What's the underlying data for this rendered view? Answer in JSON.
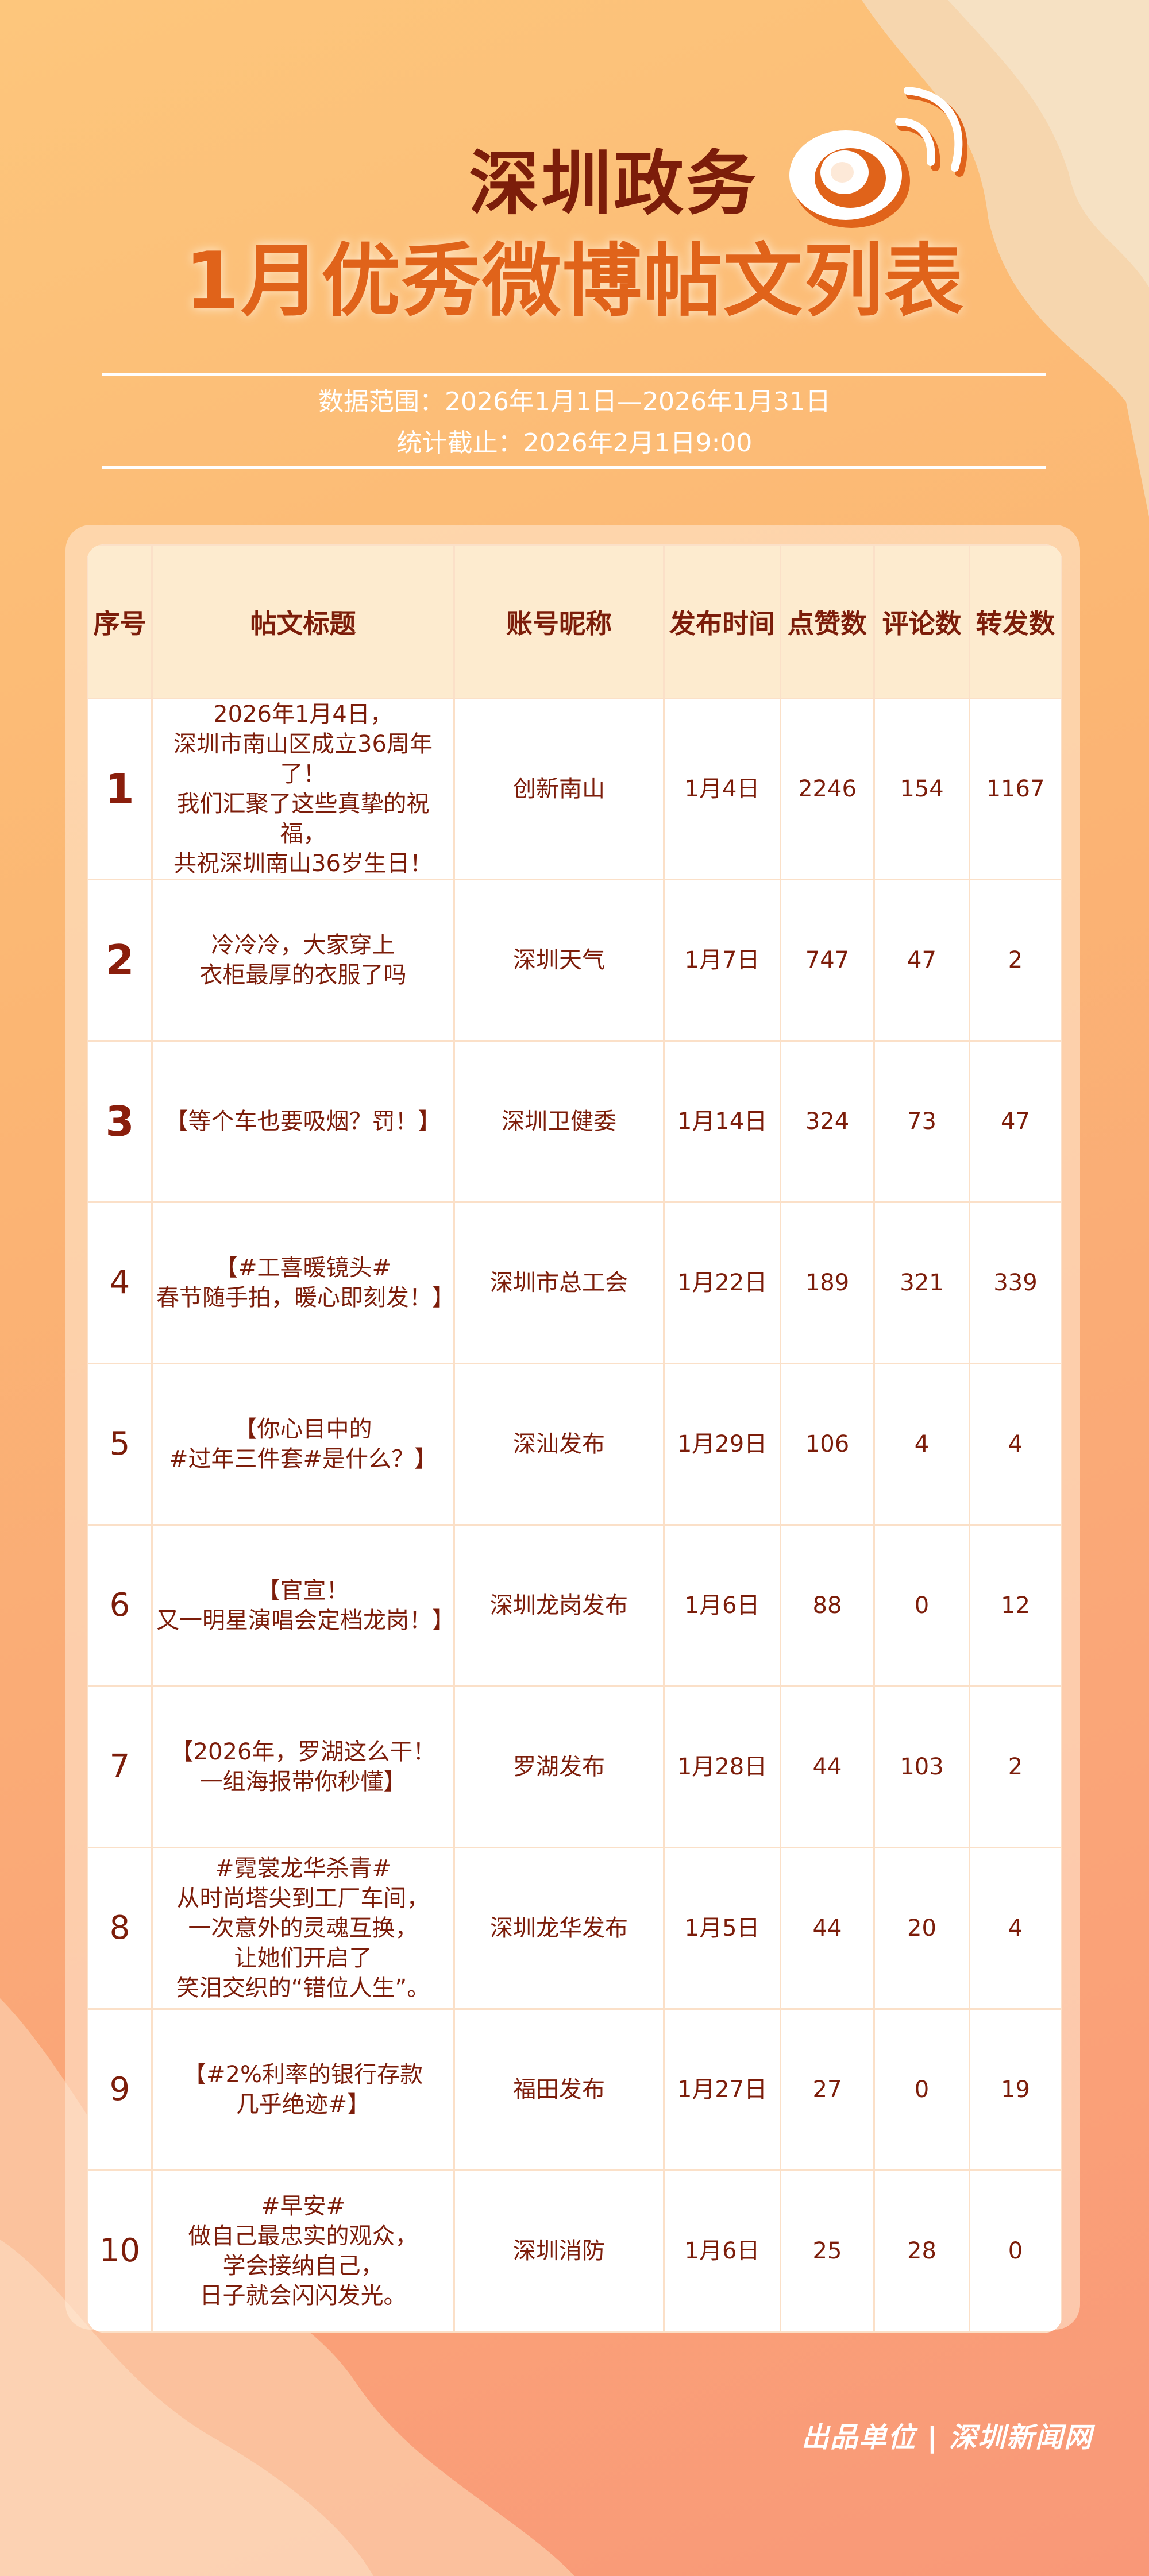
{
  "header": {
    "title_line1": "深圳政务",
    "title_line2": "1月优秀微博帖文列表",
    "logo": "weibo-logo",
    "data_range": "数据范围：2026年1月1日—2026年1月31日",
    "cutoff": "统计截止：2026年2月1日9:00"
  },
  "table": {
    "columns": [
      "序号",
      "帖文标题",
      "账号昵称",
      "发布时间",
      "点赞数",
      "评论数",
      "转发数"
    ],
    "rows": [
      {
        "rank": "1",
        "title": "2026年1月4日，\n深圳市南山区成立36周年了！\n我们汇聚了这些真挚的祝福，\n共祝深圳南山36岁生日！",
        "account": "创新南山",
        "date": "1月4日",
        "likes": "2246",
        "comments": "154",
        "reposts": "1167"
      },
      {
        "rank": "2",
        "title": "冷冷冷，大家穿上\n衣柜最厚的衣服了吗",
        "account": "深圳天气",
        "date": "1月7日",
        "likes": "747",
        "comments": "47",
        "reposts": "2"
      },
      {
        "rank": "3",
        "title": "【等个车也要吸烟？罚！】",
        "account": "深圳卫健委",
        "date": "1月14日",
        "likes": "324",
        "comments": "73",
        "reposts": "47"
      },
      {
        "rank": "4",
        "title": "【#工喜暖镜头#\n春节随手拍，暖心即刻发！】",
        "account": "深圳市总工会",
        "date": "1月22日",
        "likes": "189",
        "comments": "321",
        "reposts": "339"
      },
      {
        "rank": "5",
        "title": "【你心目中的\n#过年三件套#是什么？】",
        "account": "深汕发布",
        "date": "1月29日",
        "likes": "106",
        "comments": "4",
        "reposts": "4"
      },
      {
        "rank": "6",
        "title": "【官宣！\n又一明星演唱会定档龙岗！】",
        "account": "深圳龙岗发布",
        "date": "1月6日",
        "likes": "88",
        "comments": "0",
        "reposts": "12"
      },
      {
        "rank": "7",
        "title": "【2026年，罗湖这么干！\n一组海报带你秒懂】",
        "account": "罗湖发布",
        "date": "1月28日",
        "likes": "44",
        "comments": "103",
        "reposts": "2"
      },
      {
        "rank": "8",
        "title": "#霓裳龙华杀青#\n从时尚塔尖到工厂车间，\n一次意外的灵魂互换，\n让她们开启了\n笑泪交织的“错位人生”。",
        "account": "深圳龙华发布",
        "date": "1月5日",
        "likes": "44",
        "comments": "20",
        "reposts": "4"
      },
      {
        "rank": "9",
        "title": "【#2%利率的银行存款\n几乎绝迹#】",
        "account": "福田发布",
        "date": "1月27日",
        "likes": "27",
        "comments": "0",
        "reposts": "19"
      },
      {
        "rank": "10",
        "title": "#早安#\n做自己最忠实的观众，\n学会接纳自己，\n日子就会闪闪发光。",
        "account": "深圳消防",
        "date": "1月6日",
        "likes": "25",
        "comments": "28",
        "reposts": "0"
      }
    ]
  },
  "footer": {
    "credit": "出品单位 | 深圳新闻网"
  },
  "colors": {
    "text": "#7c1d0a",
    "accent": "#e0631a",
    "header_bg": "#fdebcf",
    "grid": "#fbe0c8"
  }
}
